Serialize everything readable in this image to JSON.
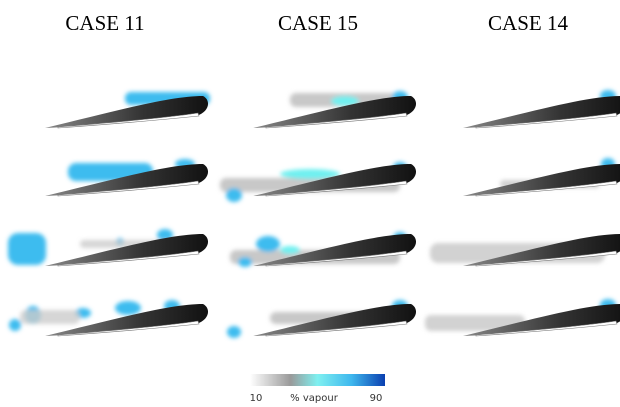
{
  "columns": [
    "CASE 11",
    "CASE 15",
    "CASE 14"
  ],
  "colorbar": {
    "min": "10",
    "label": "% vapour",
    "max": "90"
  }
}
